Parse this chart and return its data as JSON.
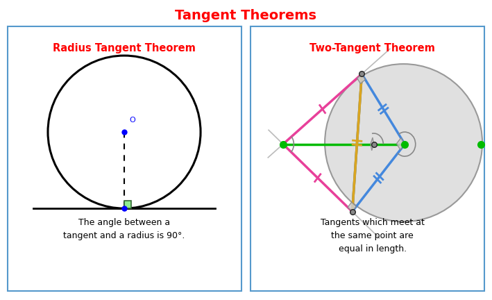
{
  "title": "Tangent Theorems",
  "title_color": "#FF0000",
  "title_fontsize": 14,
  "left_panel_title": "Radius Tangent Theorem",
  "right_panel_title": "Two-Tangent Theorem",
  "left_text": "The angle between a\ntangent and a radius is 90°.",
  "right_text": "Tangents which meet at\nthe same point are\nequal in length.",
  "panel_edge_color": "#5599CC",
  "background_color": "#FFFFFF",
  "text_color": "#000000",
  "red_color": "#FF0000",
  "green_color": "#00BB00",
  "pink_color": "#E8409A",
  "blue_color": "#4488DD",
  "yellow_color": "#DAA520",
  "gray_color": "#AAAAAA",
  "circle_gray": "#E0E0E0",
  "sq_green_face": "#90EE90",
  "sq_green_edge": "#336633"
}
